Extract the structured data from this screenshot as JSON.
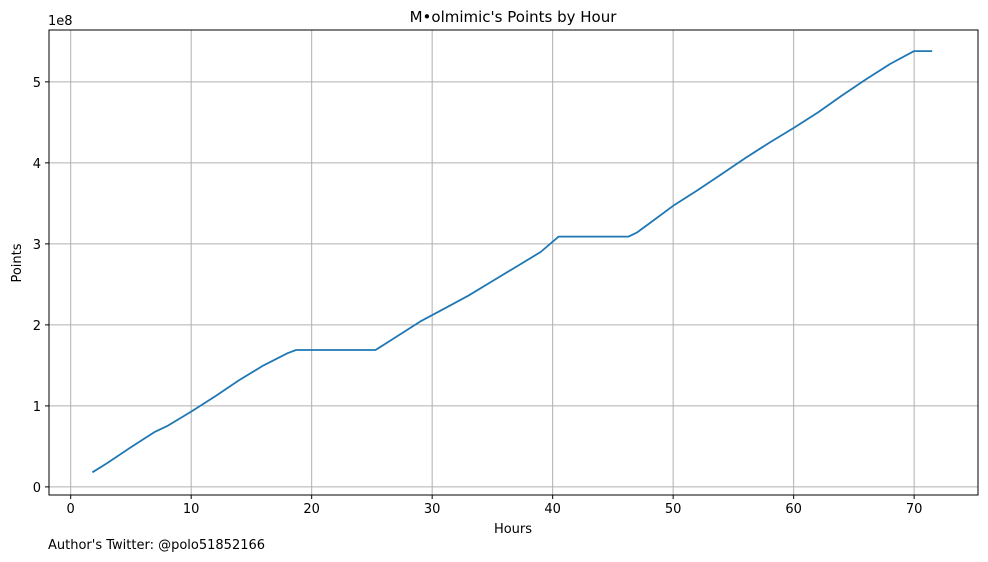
{
  "footer": {
    "text": "Author's Twitter: @polo51852166"
  },
  "chart_data": {
    "type": "line",
    "title": "M•olmimic's Points by Hour",
    "xlabel": "Hours",
    "ylabel": "Points",
    "offset_text": "1e8",
    "grid": true,
    "xlim": [
      -1.8,
      75.3
    ],
    "ylim": [
      -0.1,
      5.64
    ],
    "xticks": [
      0,
      10,
      20,
      30,
      40,
      50,
      60,
      70
    ],
    "yticks": [
      0,
      1,
      2,
      3,
      4,
      5
    ],
    "line_color": "#1f77b4",
    "series": [
      {
        "name": "Points",
        "x": [
          1.8,
          3,
          5,
          7,
          8,
          10,
          12,
          14,
          16,
          18,
          18.7,
          25.3,
          27,
          29,
          31,
          33,
          35,
          37,
          39,
          40.5,
          46.3,
          47,
          48,
          50,
          52,
          54,
          56,
          58,
          60,
          62,
          64,
          66,
          68,
          70,
          71.5
        ],
        "y": [
          0.18,
          0.29,
          0.49,
          0.68,
          0.75,
          0.93,
          1.12,
          1.32,
          1.5,
          1.65,
          1.69,
          1.69,
          1.85,
          2.04,
          2.2,
          2.36,
          2.54,
          2.72,
          2.9,
          3.09,
          3.09,
          3.14,
          3.25,
          3.47,
          3.66,
          3.86,
          4.06,
          4.25,
          4.43,
          4.62,
          4.83,
          5.03,
          5.22,
          5.38,
          5.38
        ]
      }
    ]
  }
}
